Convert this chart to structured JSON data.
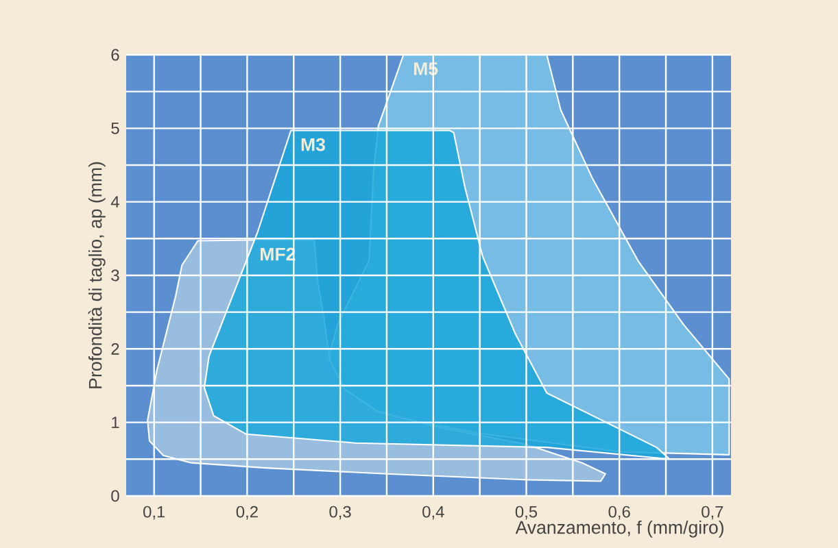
{
  "chart_data": {
    "type": "area",
    "xlabel": "Avanzamento, f (mm/giro)",
    "ylabel": "Profondità di taglio, ap (mm)",
    "xlim": [
      0.07,
      0.72
    ],
    "ylim": [
      0,
      6
    ],
    "xticks": [
      {
        "value": 0.1,
        "label": "0,1"
      },
      {
        "value": 0.2,
        "label": "0,2"
      },
      {
        "value": 0.3,
        "label": "0,3"
      },
      {
        "value": 0.4,
        "label": "0,4"
      },
      {
        "value": 0.5,
        "label": "0,5"
      },
      {
        "value": 0.6,
        "label": "0,6"
      },
      {
        "value": 0.7,
        "label": "0,7"
      }
    ],
    "yticks": [
      0,
      1,
      2,
      3,
      4,
      5,
      6
    ],
    "grid": true,
    "series": [
      {
        "name": "M5",
        "color": "#7cc4e8",
        "x": [
          0.368,
          0.522,
          0.537,
          0.571,
          0.62,
          0.669,
          0.718,
          0.718,
          0.6,
          0.45,
          0.365,
          0.297,
          0.284,
          0.297,
          0.331,
          0.336,
          0.341
        ],
        "values": [
          6.0,
          6.0,
          5.25,
          4.32,
          3.2,
          2.33,
          1.59,
          0.56,
          0.6,
          0.85,
          1.06,
          1.28,
          1.71,
          2.33,
          3.2,
          4.44,
          5.03
        ]
      },
      {
        "name": "MF2",
        "color": "#a3c6e2",
        "x": [
          0.093,
          0.103,
          0.123,
          0.13,
          0.147,
          0.203,
          0.272,
          0.276,
          0.282,
          0.289,
          0.305,
          0.34,
          0.4,
          0.5,
          0.56,
          0.585,
          0.58,
          0.5,
          0.35,
          0.22,
          0.14,
          0.11,
          0.095
        ],
        "values": [
          1.03,
          1.71,
          2.71,
          3.14,
          3.47,
          3.48,
          3.48,
          2.9,
          2.46,
          1.84,
          1.45,
          1.15,
          0.95,
          0.7,
          0.45,
          0.3,
          0.2,
          0.22,
          0.3,
          0.38,
          0.45,
          0.55,
          0.75
        ]
      },
      {
        "name": "M3",
        "color": "#1ba7da",
        "x": [
          0.247,
          0.418,
          0.422,
          0.434,
          0.453,
          0.488,
          0.522,
          0.581,
          0.64,
          0.654,
          0.522,
          0.316,
          0.199,
          0.164,
          0.154,
          0.159,
          0.184,
          0.211
        ],
        "values": [
          4.97,
          4.97,
          4.94,
          4.2,
          3.26,
          2.21,
          1.4,
          1.03,
          0.66,
          0.5,
          0.66,
          0.72,
          0.84,
          1.09,
          1.47,
          1.9,
          2.71,
          3.58
        ]
      }
    ]
  }
}
